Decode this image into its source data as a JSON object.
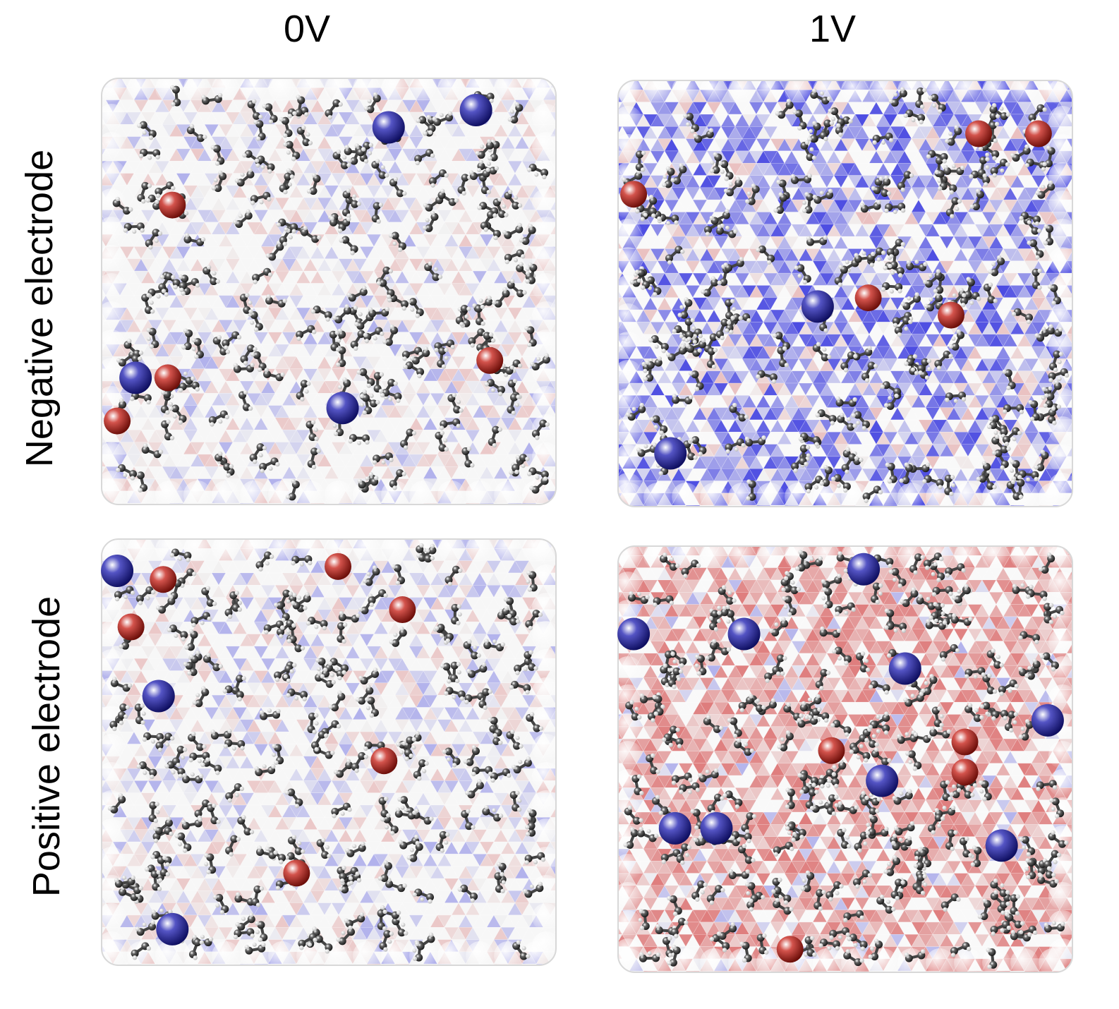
{
  "columns": [
    {
      "id": "0v",
      "label": "0V"
    },
    {
      "id": "1v",
      "label": "1V"
    }
  ],
  "rows": [
    {
      "id": "negative",
      "label": "Negative electrode"
    },
    {
      "id": "positive",
      "label": "Positive electrode"
    }
  ],
  "colors": {
    "background": "#ffffff",
    "surface_neutral": "#f2f2f2",
    "surface_blue": "#3a3ae0",
    "surface_red": "#d64a4a",
    "cation": "#1b1bb0",
    "anion": "#c41a10",
    "solvent_carbon": "#2e2e2e",
    "solvent_hydrogen": "#ffffff"
  },
  "panels": [
    {
      "id": "neg-0v",
      "row": "negative",
      "column": "0v",
      "surface_charge": "weak",
      "tint_bias": 0,
      "cations": [
        [
          0.63,
          0.12
        ],
        [
          0.82,
          0.08
        ],
        [
          0.08,
          0.7
        ],
        [
          0.53,
          0.77
        ]
      ],
      "anions": [
        [
          0.16,
          0.3
        ],
        [
          0.15,
          0.7
        ],
        [
          0.85,
          0.66
        ],
        [
          0.04,
          0.8
        ]
      ]
    },
    {
      "id": "neg-1v",
      "row": "negative",
      "column": "1v",
      "surface_charge": "negative",
      "tint_bias": 1,
      "cations": [
        [
          0.44,
          0.53
        ],
        [
          0.12,
          0.87
        ]
      ],
      "anions": [
        [
          0.79,
          0.13
        ],
        [
          0.92,
          0.13
        ],
        [
          0.04,
          0.27
        ],
        [
          0.55,
          0.51
        ],
        [
          0.73,
          0.55
        ]
      ]
    },
    {
      "id": "pos-0v",
      "row": "positive",
      "column": "0v",
      "surface_charge": "weak",
      "tint_bias": 0,
      "cations": [
        [
          0.04,
          0.08
        ],
        [
          0.13,
          0.37
        ],
        [
          0.16,
          0.91
        ]
      ],
      "anions": [
        [
          0.14,
          0.1
        ],
        [
          0.07,
          0.21
        ],
        [
          0.52,
          0.07
        ],
        [
          0.66,
          0.17
        ],
        [
          0.62,
          0.52
        ],
        [
          0.43,
          0.78
        ]
      ]
    },
    {
      "id": "pos-1v",
      "row": "positive",
      "column": "1v",
      "surface_charge": "positive",
      "tint_bias": -1,
      "cations": [
        [
          0.54,
          0.06
        ],
        [
          0.04,
          0.21
        ],
        [
          0.28,
          0.21
        ],
        [
          0.63,
          0.29
        ],
        [
          0.94,
          0.41
        ],
        [
          0.58,
          0.55
        ],
        [
          0.13,
          0.66
        ],
        [
          0.22,
          0.66
        ],
        [
          0.84,
          0.7
        ]
      ],
      "anions": [
        [
          0.47,
          0.48
        ],
        [
          0.76,
          0.46
        ],
        [
          0.76,
          0.53
        ],
        [
          0.38,
          0.94
        ]
      ]
    }
  ]
}
